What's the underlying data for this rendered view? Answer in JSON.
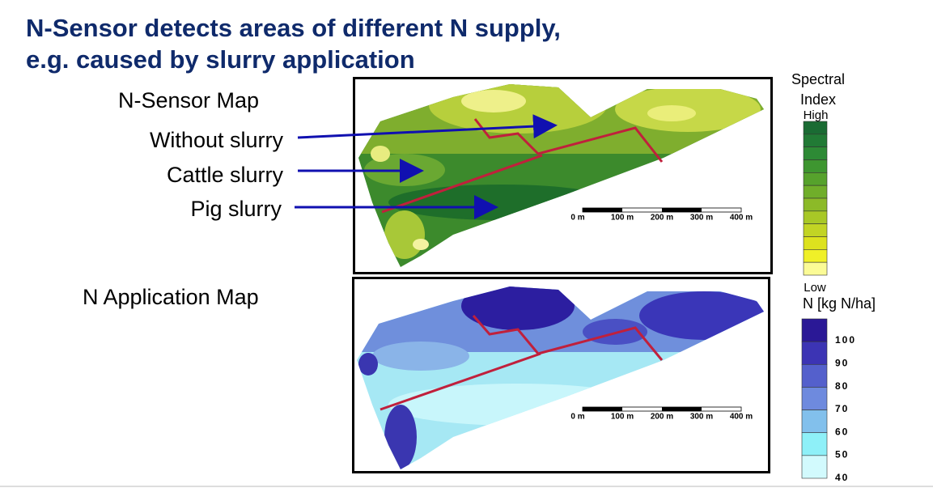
{
  "title": [
    "N-Sensor detects areas of different N supply,",
    "e.g. caused by slurry application"
  ],
  "sensor_map": {
    "label": "N-Sensor Map",
    "zones": [
      "Without slurry",
      "Cattle slurry",
      "Pig slurry"
    ],
    "scale": [
      "0 m",
      "100 m",
      "200 m",
      "300 m",
      "400 m"
    ]
  },
  "application_map": {
    "label": "N Application Map",
    "scale": [
      "0 m",
      "100 m",
      "200 m",
      "300 m",
      "400 m"
    ]
  },
  "spectral_legend": {
    "title": [
      "Spectral",
      "Index"
    ],
    "high": "High",
    "low": "Low"
  },
  "n_legend": {
    "title": "N [kg N/ha]",
    "labels": [
      "100",
      "90",
      "80",
      "70",
      "60",
      "50",
      "40"
    ]
  }
}
